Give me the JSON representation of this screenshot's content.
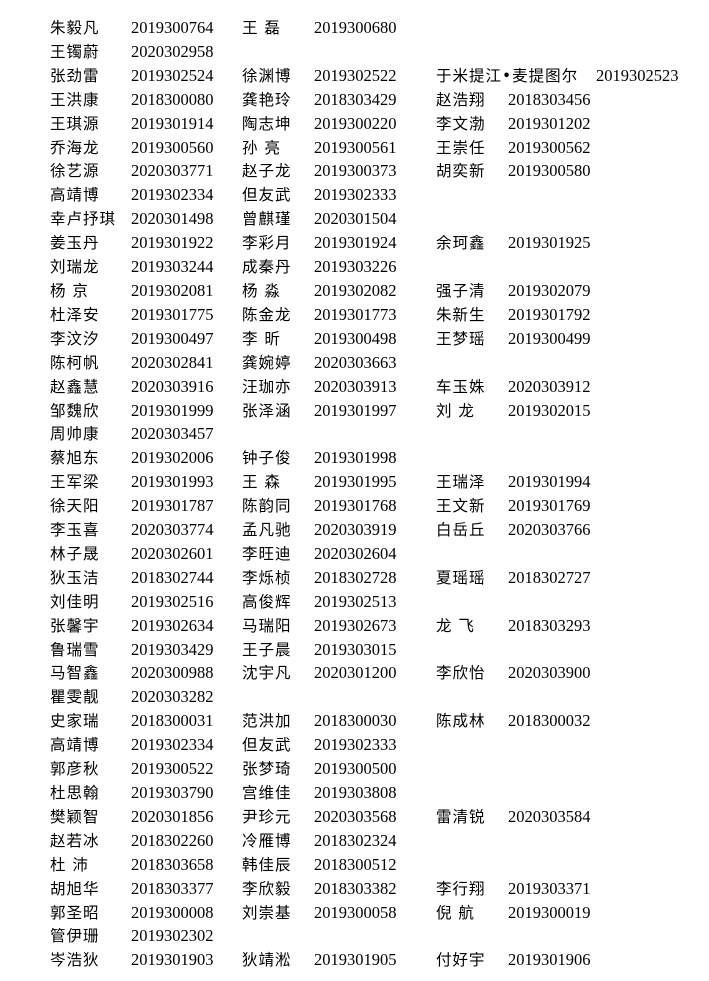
{
  "rows": [
    [
      [
        "朱毅凡",
        "2019300764"
      ],
      [
        "王 磊",
        "2019300680"
      ]
    ],
    [
      [
        "王镯蔚",
        "2020302958"
      ]
    ],
    [
      [
        "张劲雷",
        "2019302524"
      ],
      [
        "徐渊博",
        "2019302522"
      ],
      [
        "于米提江•麦提图尔",
        "2019302523"
      ]
    ],
    [
      [
        "王洪康",
        "2018300080"
      ],
      [
        "龚艳玲",
        "2018303429"
      ],
      [
        "赵浩翔",
        "2018303456"
      ]
    ],
    [
      [
        "王琪源",
        "2019301914"
      ],
      [
        "陶志坤",
        "2019300220"
      ],
      [
        "李文渤",
        "2019301202"
      ]
    ],
    [
      [
        "乔海龙",
        "2019300560"
      ],
      [
        "孙 亮",
        "2019300561"
      ],
      [
        "王崇任",
        "2019300562"
      ]
    ],
    [
      [
        "徐艺源",
        "2020303771"
      ],
      [
        "赵子龙",
        "2019300373"
      ],
      [
        "胡奕新",
        "2019300580"
      ]
    ],
    [
      [
        "高靖博",
        "2019302334"
      ],
      [
        "但友武",
        "2019302333"
      ]
    ],
    [
      [
        "幸卢抒琪",
        "2020301498"
      ],
      [
        "曾麒瑾",
        "2020301504"
      ]
    ],
    [
      [
        "姜玉丹",
        "2019301922"
      ],
      [
        "李彩月",
        "2019301924"
      ],
      [
        "余珂鑫",
        "2019301925"
      ]
    ],
    [
      [
        "刘瑞龙",
        "2019303244"
      ],
      [
        "成秦丹",
        "2019303226"
      ]
    ],
    [
      [
        "杨 京",
        "2019302081"
      ],
      [
        "杨 淼",
        "2019302082"
      ],
      [
        "强子清",
        "2019302079"
      ]
    ],
    [
      [
        "杜泽安",
        "2019301775"
      ],
      [
        "陈金龙",
        "2019301773"
      ],
      [
        "朱新生",
        "2019301792"
      ]
    ],
    [
      [
        "李汶汐",
        "2019300497"
      ],
      [
        "李 昕",
        "2019300498"
      ],
      [
        "王梦瑶",
        "2019300499"
      ]
    ],
    [
      [
        "陈柯帆",
        "2020302841"
      ],
      [
        "龚婉婷",
        "2020303663"
      ]
    ],
    [
      [
        "赵鑫慧",
        "2020303916"
      ],
      [
        "汪珈亦",
        "2020303913"
      ],
      [
        "车玉姝",
        "2020303912"
      ]
    ],
    [
      [
        "邹魏欣",
        "2019301999"
      ],
      [
        "张泽涵",
        "2019301997"
      ],
      [
        "刘 龙",
        "2019302015"
      ]
    ],
    [
      [
        "周帅康",
        "2020303457"
      ]
    ],
    [
      [
        "蔡旭东",
        "2019302006"
      ],
      [
        "钟子俊",
        "2019301998"
      ]
    ],
    [
      [
        "王军梁",
        "2019301993"
      ],
      [
        "王 森",
        "2019301995"
      ],
      [
        "王瑞泽",
        "2019301994"
      ]
    ],
    [
      [
        "徐天阳",
        "2019301787"
      ],
      [
        "陈韵同",
        "2019301768"
      ],
      [
        "王文新",
        "2019301769"
      ]
    ],
    [
      [
        "李玉喜",
        "2020303774"
      ],
      [
        "孟凡驰",
        "2020303919"
      ],
      [
        "白岳丘",
        "2020303766"
      ]
    ],
    [
      [
        "林子晟",
        "2020302601"
      ],
      [
        "李旺迪",
        "2020302604"
      ]
    ],
    [
      [
        "狄玉洁",
        "2018302744"
      ],
      [
        "李烁桢",
        "2018302728"
      ],
      [
        "夏瑶瑶",
        "2018302727"
      ]
    ],
    [
      [
        "刘佳明",
        "2019302516"
      ],
      [
        "高俊辉",
        "2019302513"
      ]
    ],
    [
      [
        "张馨宇",
        "2019302634"
      ],
      [
        "马瑞阳",
        "2019302673"
      ],
      [
        "龙 飞",
        "2018303293"
      ]
    ],
    [
      [
        "鲁瑞雪",
        "2019303429"
      ],
      [
        "王子晨",
        "2019303015"
      ]
    ],
    [
      [
        "马智鑫",
        "2020300988"
      ],
      [
        "沈宇凡",
        "2020301200"
      ],
      [
        "李欣怡",
        "2020303900"
      ]
    ],
    [
      [
        "瞿雯靓",
        "2020303282"
      ]
    ],
    [
      [
        "史家瑞",
        "2018300031"
      ],
      [
        "范洪加",
        "2018300030"
      ],
      [
        "陈成林",
        "2018300032"
      ]
    ],
    [
      [
        "高靖博",
        "2019302334"
      ],
      [
        "但友武",
        "2019302333"
      ]
    ],
    [
      [
        "郭彦秋",
        "2019300522"
      ],
      [
        "张梦琦",
        "2019300500"
      ]
    ],
    [
      [
        "杜思翰",
        "2019303790"
      ],
      [
        "宫维佳",
        "2019303808"
      ]
    ],
    [
      [
        "樊颖智",
        "2020301856"
      ],
      [
        "尹珍元",
        "2020303568"
      ],
      [
        "雷清锐",
        "2020303584"
      ]
    ],
    [
      [
        "赵若冰",
        "2018302260"
      ],
      [
        "冷雁博",
        "2018302324"
      ]
    ],
    [
      [
        "杜 沛",
        "2018303658"
      ],
      [
        "韩佳辰",
        "2018300512"
      ]
    ],
    [
      [
        "胡旭华",
        "2018303377"
      ],
      [
        "李欣毅",
        "2018303382"
      ],
      [
        "李行翔",
        "2019303371"
      ]
    ],
    [
      [
        "郭圣昭",
        "2019300008"
      ],
      [
        "刘崇基",
        "2019300058"
      ],
      [
        "倪 航",
        "2019300019"
      ]
    ],
    [
      [
        "管伊珊",
        "2019302302"
      ]
    ],
    [
      [
        "岑浩狄",
        "2019301903"
      ],
      [
        "狄靖淞",
        "2019301905"
      ],
      [
        "付好宇",
        "2019301906"
      ]
    ]
  ]
}
